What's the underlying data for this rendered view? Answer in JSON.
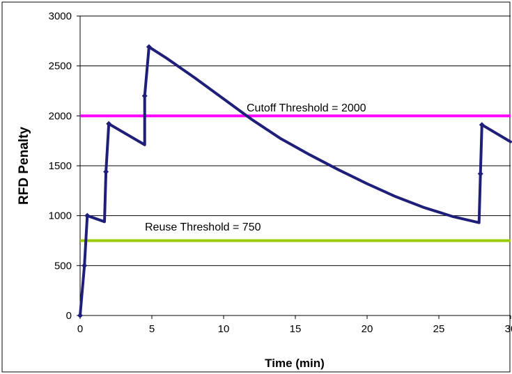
{
  "chart_data": {
    "type": "line",
    "title": "",
    "xlabel": "Time (min)",
    "ylabel": "RFD Penalty",
    "xlim": [
      0,
      30
    ],
    "ylim": [
      0,
      3000
    ],
    "xticks": [
      0,
      5,
      10,
      15,
      20,
      25,
      30
    ],
    "xtick_labels": [
      "0",
      "5",
      "10",
      "15",
      "20",
      "25",
      "30"
    ],
    "yticks": [
      0,
      500,
      1000,
      1500,
      2000,
      2500,
      3000
    ],
    "ytick_labels": [
      "0",
      "500",
      "1000",
      "1500",
      "2000",
      "2500",
      "3000"
    ],
    "grid": "horizontal",
    "legend": "none",
    "colors": {
      "series": "#1f1f7a",
      "cutoff": "#ff00ff",
      "reuse": "#99cc00",
      "grid": "#000000",
      "background": "#ffffff"
    },
    "reference_lines": [
      {
        "label": "Cutoff Threshold = 2000",
        "y": 2000,
        "color": "#ff00ff"
      },
      {
        "label": "Reuse Threshold = 750",
        "y": 750,
        "color": "#99cc00"
      }
    ],
    "series": [
      {
        "values": [
          {
            "x": 0.0,
            "y": 0,
            "marker": true
          },
          {
            "x": 0.3,
            "y": 500,
            "marker": true
          },
          {
            "x": 0.5,
            "y": 1000,
            "marker": true
          },
          {
            "x": 1.7,
            "y": 940,
            "marker": false
          },
          {
            "x": 1.8,
            "y": 1440,
            "marker": true
          },
          {
            "x": 2.0,
            "y": 1920,
            "marker": true
          },
          {
            "x": 4.5,
            "y": 1710,
            "marker": false
          },
          {
            "x": 4.5,
            "y": 2200,
            "marker": true
          },
          {
            "x": 4.8,
            "y": 2690,
            "marker": true
          },
          {
            "x": 6.0,
            "y": 2580,
            "marker": false
          },
          {
            "x": 8.0,
            "y": 2380,
            "marker": false
          },
          {
            "x": 10.0,
            "y": 2170,
            "marker": false
          },
          {
            "x": 12.0,
            "y": 1960,
            "marker": false
          },
          {
            "x": 14.0,
            "y": 1770,
            "marker": false
          },
          {
            "x": 16.0,
            "y": 1610,
            "marker": false
          },
          {
            "x": 18.0,
            "y": 1460,
            "marker": false
          },
          {
            "x": 20.0,
            "y": 1320,
            "marker": false
          },
          {
            "x": 22.0,
            "y": 1190,
            "marker": false
          },
          {
            "x": 24.0,
            "y": 1080,
            "marker": false
          },
          {
            "x": 26.0,
            "y": 990,
            "marker": false
          },
          {
            "x": 27.8,
            "y": 930,
            "marker": false
          },
          {
            "x": 27.9,
            "y": 1420,
            "marker": true
          },
          {
            "x": 28.0,
            "y": 1910,
            "marker": true
          },
          {
            "x": 30.0,
            "y": 1740,
            "marker": false
          }
        ]
      }
    ]
  }
}
